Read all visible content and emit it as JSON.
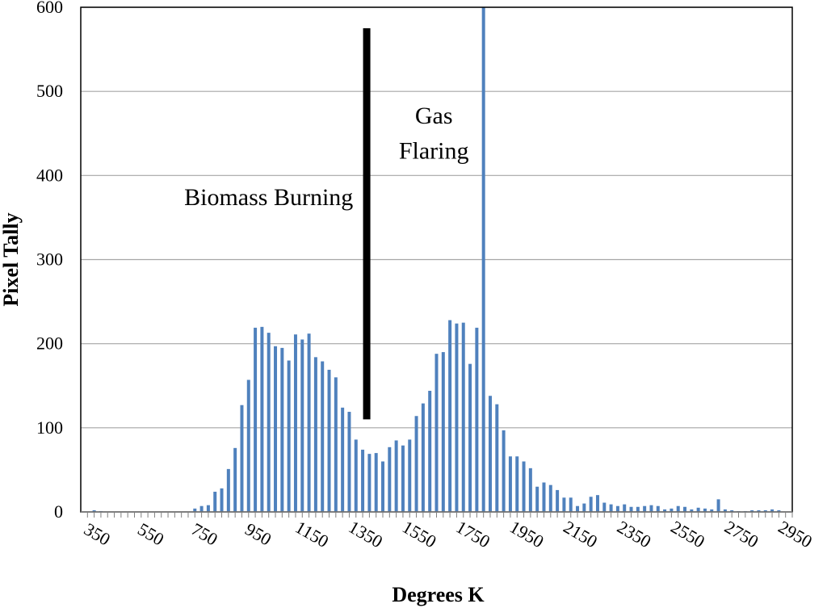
{
  "chart_data": {
    "type": "bar",
    "title": "",
    "xlabel": "Degrees K",
    "ylabel": "Pixel Tally",
    "ylim": [
      0,
      600
    ],
    "xlim": [
      300,
      2950
    ],
    "grid": true,
    "bar_color": "#4f81bd",
    "y_ticks": [
      0,
      100,
      200,
      300,
      400,
      500,
      600
    ],
    "x_tick_labels": [
      350,
      550,
      750,
      950,
      1150,
      1350,
      1550,
      1750,
      1950,
      2150,
      2350,
      2550,
      2750,
      2950
    ],
    "x_minor_step": 25,
    "bar_width": 12,
    "series": [
      {
        "x": [
          350,
          375,
          400,
          425,
          450,
          475,
          500,
          525,
          550,
          575,
          600,
          625,
          650,
          675,
          700,
          725,
          750,
          775,
          800,
          825,
          850,
          875,
          900,
          925,
          950,
          975,
          1000,
          1025,
          1050,
          1075,
          1100,
          1125,
          1150,
          1175,
          1200,
          1225,
          1250,
          1275,
          1300,
          1325,
          1350,
          1375,
          1400,
          1425,
          1450,
          1475,
          1500,
          1525,
          1550,
          1575,
          1600,
          1625,
          1650,
          1675,
          1700,
          1725,
          1750,
          1775,
          1800,
          1825,
          1850,
          1875,
          1900,
          1925,
          1950,
          1975,
          2000,
          2025,
          2050,
          2075,
          2100,
          2125,
          2150,
          2175,
          2200,
          2225,
          2250,
          2275,
          2300,
          2325,
          2350,
          2375,
          2400,
          2425,
          2450,
          2475,
          2500,
          2525,
          2550,
          2575,
          2600,
          2625,
          2650,
          2675,
          2700,
          2725,
          2750,
          2775,
          2800,
          2825,
          2850,
          2875,
          2900
        ],
        "values": [
          2,
          1,
          0,
          0,
          0,
          0,
          0,
          0,
          0,
          0,
          0,
          0,
          0,
          0,
          0,
          4,
          7,
          8,
          24,
          28,
          51,
          76,
          127,
          157,
          219,
          220,
          213,
          197,
          195,
          180,
          211,
          205,
          212,
          184,
          179,
          169,
          160,
          124,
          119,
          86,
          74,
          69,
          70,
          60,
          77,
          85,
          79,
          86,
          114,
          129,
          144,
          188,
          190,
          228,
          224,
          225,
          176,
          219,
          600,
          138,
          128,
          97,
          66,
          66,
          60,
          52,
          30,
          35,
          32,
          26,
          17,
          17,
          7,
          10,
          18,
          20,
          11,
          9,
          7,
          9,
          6,
          6,
          7,
          8,
          7,
          3,
          4,
          7,
          6,
          3,
          5,
          4,
          3,
          15,
          3,
          2,
          1,
          1,
          2,
          2,
          2,
          3,
          2
        ]
      }
    ],
    "annotations": [
      {
        "text": "Biomass Burning",
        "x": 1000,
        "y": 365
      },
      {
        "text": "Gas",
        "x": 1615,
        "y": 462
      },
      {
        "text": "Flaring",
        "x": 1615,
        "y": 420
      }
    ],
    "divider": {
      "x": 1365,
      "y0": 110,
      "y1": 575,
      "color": "#000000"
    }
  }
}
